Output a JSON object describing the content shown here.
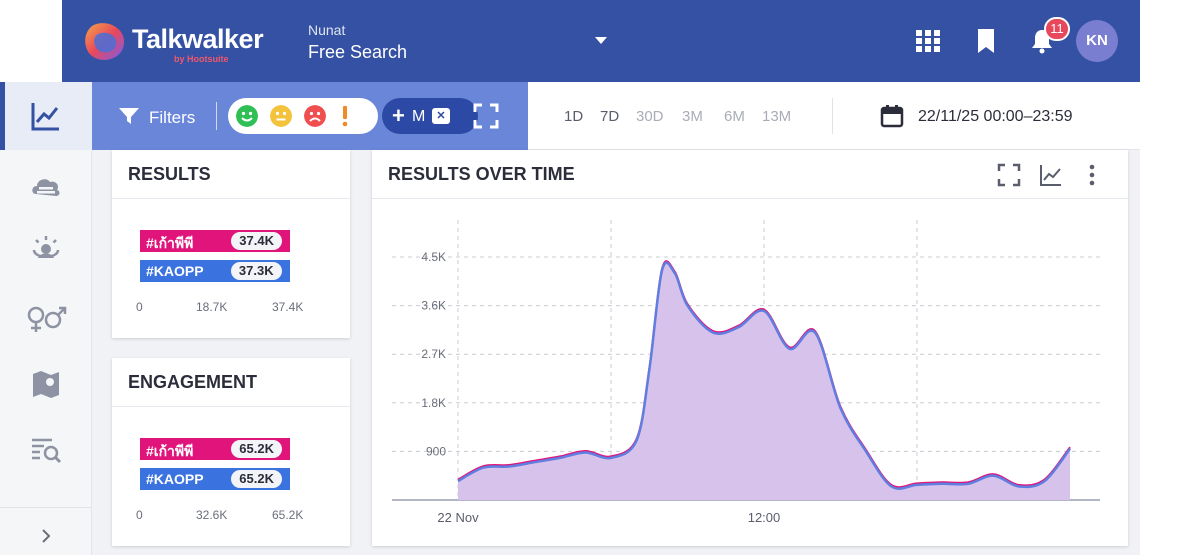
{
  "header": {
    "brand": "Talkwalker",
    "brand_sub": "by Hootsuite",
    "project_name": "Nunat",
    "search_name": "Free Search",
    "notification_count": "11",
    "avatar_initials": "KN",
    "colors": {
      "bar": "#3451a3",
      "badge": "#e8485b"
    }
  },
  "rail": {
    "items": [
      {
        "icon": "trend-chart-icon",
        "active": true
      },
      {
        "icon": "cloud-icon",
        "active": false
      },
      {
        "icon": "influencer-icon",
        "active": false
      },
      {
        "icon": "gender-icon",
        "active": false
      },
      {
        "icon": "map-icon",
        "active": false
      },
      {
        "icon": "list-search-icon",
        "active": false
      }
    ],
    "expand_icon": "chevron-right-icon"
  },
  "toolbar": {
    "filters_label": "Filters",
    "more_label": "M",
    "range_options": [
      "1D",
      "7D",
      "30D",
      "3M",
      "6M",
      "13M"
    ],
    "active_ranges": [
      "1D",
      "7D"
    ],
    "date_range": "22/11/25 00:00–23:59"
  },
  "results": {
    "title": "RESULTS",
    "rows": [
      {
        "label": "#เก้าพีพี",
        "value_label": "37.4K",
        "value": 37400,
        "color": "#e0147a"
      },
      {
        "label": "#KAOPP",
        "value_label": "37.3K",
        "value": 37300,
        "color": "#3a72e0"
      }
    ],
    "ticks": [
      "0",
      "18.7K",
      "37.4K"
    ]
  },
  "engagement": {
    "title": "ENGAGEMENT",
    "rows": [
      {
        "label": "#เก้าพีพี",
        "value_label": "65.2K",
        "value": 65200,
        "color": "#e0147a"
      },
      {
        "label": "#KAOPP",
        "value_label": "65.2K",
        "value": 65200,
        "color": "#3a72e0"
      }
    ],
    "ticks": [
      "0",
      "32.6K",
      "65.2K"
    ]
  },
  "over_time": {
    "title": "RESULTS OVER TIME"
  },
  "chart_data": {
    "type": "area",
    "title": "RESULTS OVER TIME",
    "x_ticks": [
      "22 Nov",
      "12:00"
    ],
    "y_ticks": [
      "900",
      "1.8K",
      "2.7K",
      "3.6K",
      "4.5K"
    ],
    "ylim": [
      0,
      5000
    ],
    "x_hours": [
      0,
      1,
      2,
      3,
      4,
      5,
      6,
      7,
      7.5,
      8,
      8.5,
      9,
      10,
      11,
      12,
      13,
      14,
      15,
      16,
      17,
      18,
      19,
      20,
      21,
      22,
      23,
      24
    ],
    "series": [
      {
        "values": [
          350,
          600,
          620,
          700,
          780,
          880,
          780,
          1100,
          2400,
          4250,
          4200,
          3600,
          3100,
          3200,
          3500,
          2800,
          3100,
          1700,
          900,
          250,
          280,
          300,
          300,
          450,
          250,
          350,
          950
        ],
        "color": "#8a6fd6"
      }
    ],
    "grid": true,
    "fill_color": "#d7c2ec",
    "line_color": "#5f7ee0"
  }
}
